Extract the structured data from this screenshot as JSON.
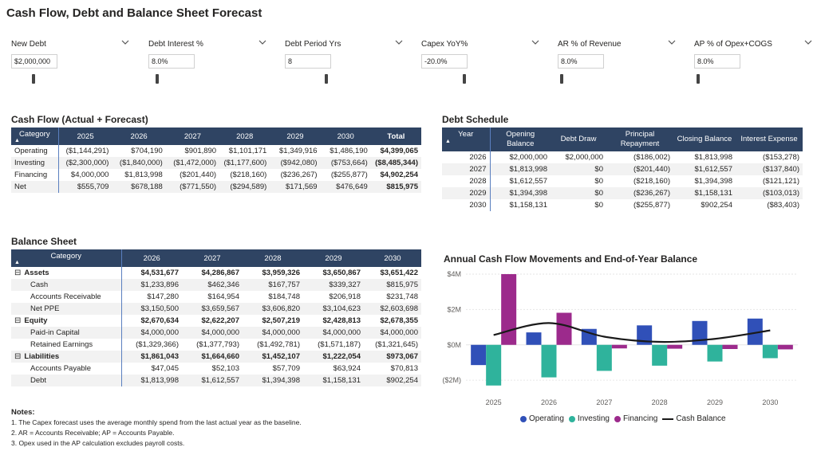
{
  "page_title": "Cash Flow, Debt and Balance Sheet Forecast",
  "slicers": [
    {
      "label": "New Debt",
      "value": "$2,000,000",
      "level": 0.18
    },
    {
      "label": "Debt Interest %",
      "value": "8.0%",
      "level": 0.06
    },
    {
      "label": "Debt Period Yrs",
      "value": "8",
      "level": 0.35
    },
    {
      "label": "Capex YoY%",
      "value": "-20.0%",
      "level": 0.36
    },
    {
      "label": "AR % of Revenue",
      "value": "8.0%",
      "level": 0.02
    },
    {
      "label": "AP % of Opex+COGS",
      "value": "8.0%",
      "level": 0.02
    }
  ],
  "cash_flow": {
    "title": "Cash Flow (Actual + Forecast)",
    "headers": [
      "Category",
      "2025",
      "2026",
      "2027",
      "2028",
      "2029",
      "2030",
      "Total"
    ],
    "rows": [
      [
        "Operating",
        "($1,144,291)",
        "$704,190",
        "$901,890",
        "$1,101,171",
        "$1,349,916",
        "$1,486,190",
        "$4,399,065"
      ],
      [
        "Investing",
        "($2,300,000)",
        "($1,840,000)",
        "($1,472,000)",
        "($1,177,600)",
        "($942,080)",
        "($753,664)",
        "($8,485,344)"
      ],
      [
        "Financing",
        "$4,000,000",
        "$1,813,998",
        "($201,440)",
        "($218,160)",
        "($236,267)",
        "($255,877)",
        "$4,902,254"
      ],
      [
        "Net",
        "$555,709",
        "$678,188",
        "($771,550)",
        "($294,589)",
        "$171,569",
        "$476,649",
        "$815,975"
      ]
    ]
  },
  "debt_schedule": {
    "title": "Debt Schedule",
    "headers": [
      "Year",
      "Opening Balance",
      "Debt Draw",
      "Principal Repayment",
      "Closing Balance",
      "Interest Expense"
    ],
    "rows": [
      [
        "2026",
        "$2,000,000",
        "$2,000,000",
        "($186,002)",
        "$1,813,998",
        "($153,278)"
      ],
      [
        "2027",
        "$1,813,998",
        "$0",
        "($201,440)",
        "$1,612,557",
        "($137,840)"
      ],
      [
        "2028",
        "$1,612,557",
        "$0",
        "($218,160)",
        "$1,394,398",
        "($121,121)"
      ],
      [
        "2029",
        "$1,394,398",
        "$0",
        "($236,267)",
        "$1,158,131",
        "($103,013)"
      ],
      [
        "2030",
        "$1,158,131",
        "$0",
        "($255,877)",
        "$902,254",
        "($83,403)"
      ]
    ]
  },
  "balance_sheet": {
    "title": "Balance Sheet",
    "headers": [
      "Category",
      "2026",
      "2027",
      "2028",
      "2029",
      "2030"
    ],
    "rows": [
      {
        "group": true,
        "cells": [
          "Assets",
          "$4,531,677",
          "$4,286,867",
          "$3,959,326",
          "$3,650,867",
          "$3,651,422"
        ]
      },
      {
        "group": false,
        "cells": [
          "Cash",
          "$1,233,896",
          "$462,346",
          "$167,757",
          "$339,327",
          "$815,975"
        ]
      },
      {
        "group": false,
        "cells": [
          "Accounts Receivable",
          "$147,280",
          "$164,954",
          "$184,748",
          "$206,918",
          "$231,748"
        ]
      },
      {
        "group": false,
        "cells": [
          "Net PPE",
          "$3,150,500",
          "$3,659,567",
          "$3,606,820",
          "$3,104,623",
          "$2,603,698"
        ]
      },
      {
        "group": true,
        "cells": [
          "Equity",
          "$2,670,634",
          "$2,622,207",
          "$2,507,219",
          "$2,428,813",
          "$2,678,355"
        ]
      },
      {
        "group": false,
        "cells": [
          "Paid-in Capital",
          "$4,000,000",
          "$4,000,000",
          "$4,000,000",
          "$4,000,000",
          "$4,000,000"
        ]
      },
      {
        "group": false,
        "cells": [
          "Retained Earnings",
          "($1,329,366)",
          "($1,377,793)",
          "($1,492,781)",
          "($1,571,187)",
          "($1,321,645)"
        ]
      },
      {
        "group": true,
        "cells": [
          "Liabilities",
          "$1,861,043",
          "$1,664,660",
          "$1,452,107",
          "$1,222,054",
          "$973,067"
        ]
      },
      {
        "group": false,
        "cells": [
          "Accounts Payable",
          "$47,045",
          "$52,103",
          "$57,709",
          "$63,924",
          "$70,813"
        ]
      },
      {
        "group": false,
        "cells": [
          "Debt",
          "$1,813,998",
          "$1,612,557",
          "$1,394,398",
          "$1,158,131",
          "$902,254"
        ]
      }
    ]
  },
  "notes": {
    "title": "Notes:",
    "lines": [
      "1. The Capex forecast uses the average monthly spend from the last actual year as the baseline.",
      "2. AR = Accounts Receivable; AP = Accounts Payable.",
      "3. Opex used in the AP calculation excludes payroll costs."
    ]
  },
  "chart_data": {
    "type": "bar",
    "title": "Annual Cash Flow Movements and End-of-Year Balance",
    "categories": [
      "2025",
      "2026",
      "2027",
      "2028",
      "2029",
      "2030"
    ],
    "series": [
      {
        "name": "Operating",
        "color": "#3050b8",
        "values": [
          -1144291,
          704190,
          901890,
          1101171,
          1349916,
          1486190
        ]
      },
      {
        "name": "Investing",
        "color": "#2fb39c",
        "values": [
          -2300000,
          -1840000,
          -1472000,
          -1177600,
          -942080,
          -753664
        ]
      },
      {
        "name": "Financing",
        "color": "#9c2a8c",
        "values": [
          4000000,
          1813998,
          -201440,
          -218160,
          -236267,
          -255877
        ]
      }
    ],
    "line_series": {
      "name": "Cash Balance",
      "color": "#1a1a1a",
      "values": [
        555709,
        1233896,
        462346,
        167757,
        339327,
        815975
      ]
    },
    "yticks": [
      {
        "v": 4000000,
        "label": "$4M"
      },
      {
        "v": 2000000,
        "label": "$2M"
      },
      {
        "v": 0,
        "label": "$0M"
      },
      {
        "v": -2000000,
        "label": "($2M)"
      }
    ],
    "ylim": [
      -2400000,
      4000000
    ],
    "legend_position": "bottom"
  }
}
